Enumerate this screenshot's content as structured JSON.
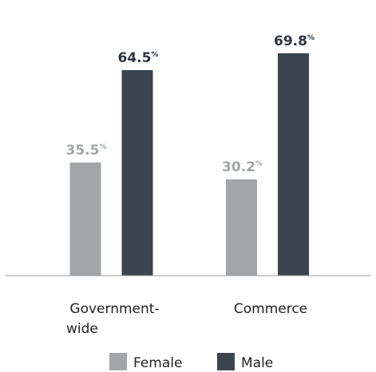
{
  "chart_data": {
    "type": "bar",
    "title": "",
    "xlabel": "",
    "ylabel": "",
    "categories": [
      [
        "Government-",
        "wide"
      ],
      [
        "Commerce"
      ]
    ],
    "series": [
      {
        "name": "Female",
        "values": [
          35.5,
          30.2
        ],
        "color": "#a2a6a9",
        "label_color": "#a2a6a9"
      },
      {
        "name": "Male",
        "values": [
          64.5,
          69.8
        ],
        "color": "#3b4550",
        "label_color": "#2e3640"
      }
    ],
    "value_suffix": "%",
    "ylim": [
      0,
      100
    ],
    "grid": false,
    "legend_position": "bottom",
    "axis_color": "#9a9a9a"
  }
}
